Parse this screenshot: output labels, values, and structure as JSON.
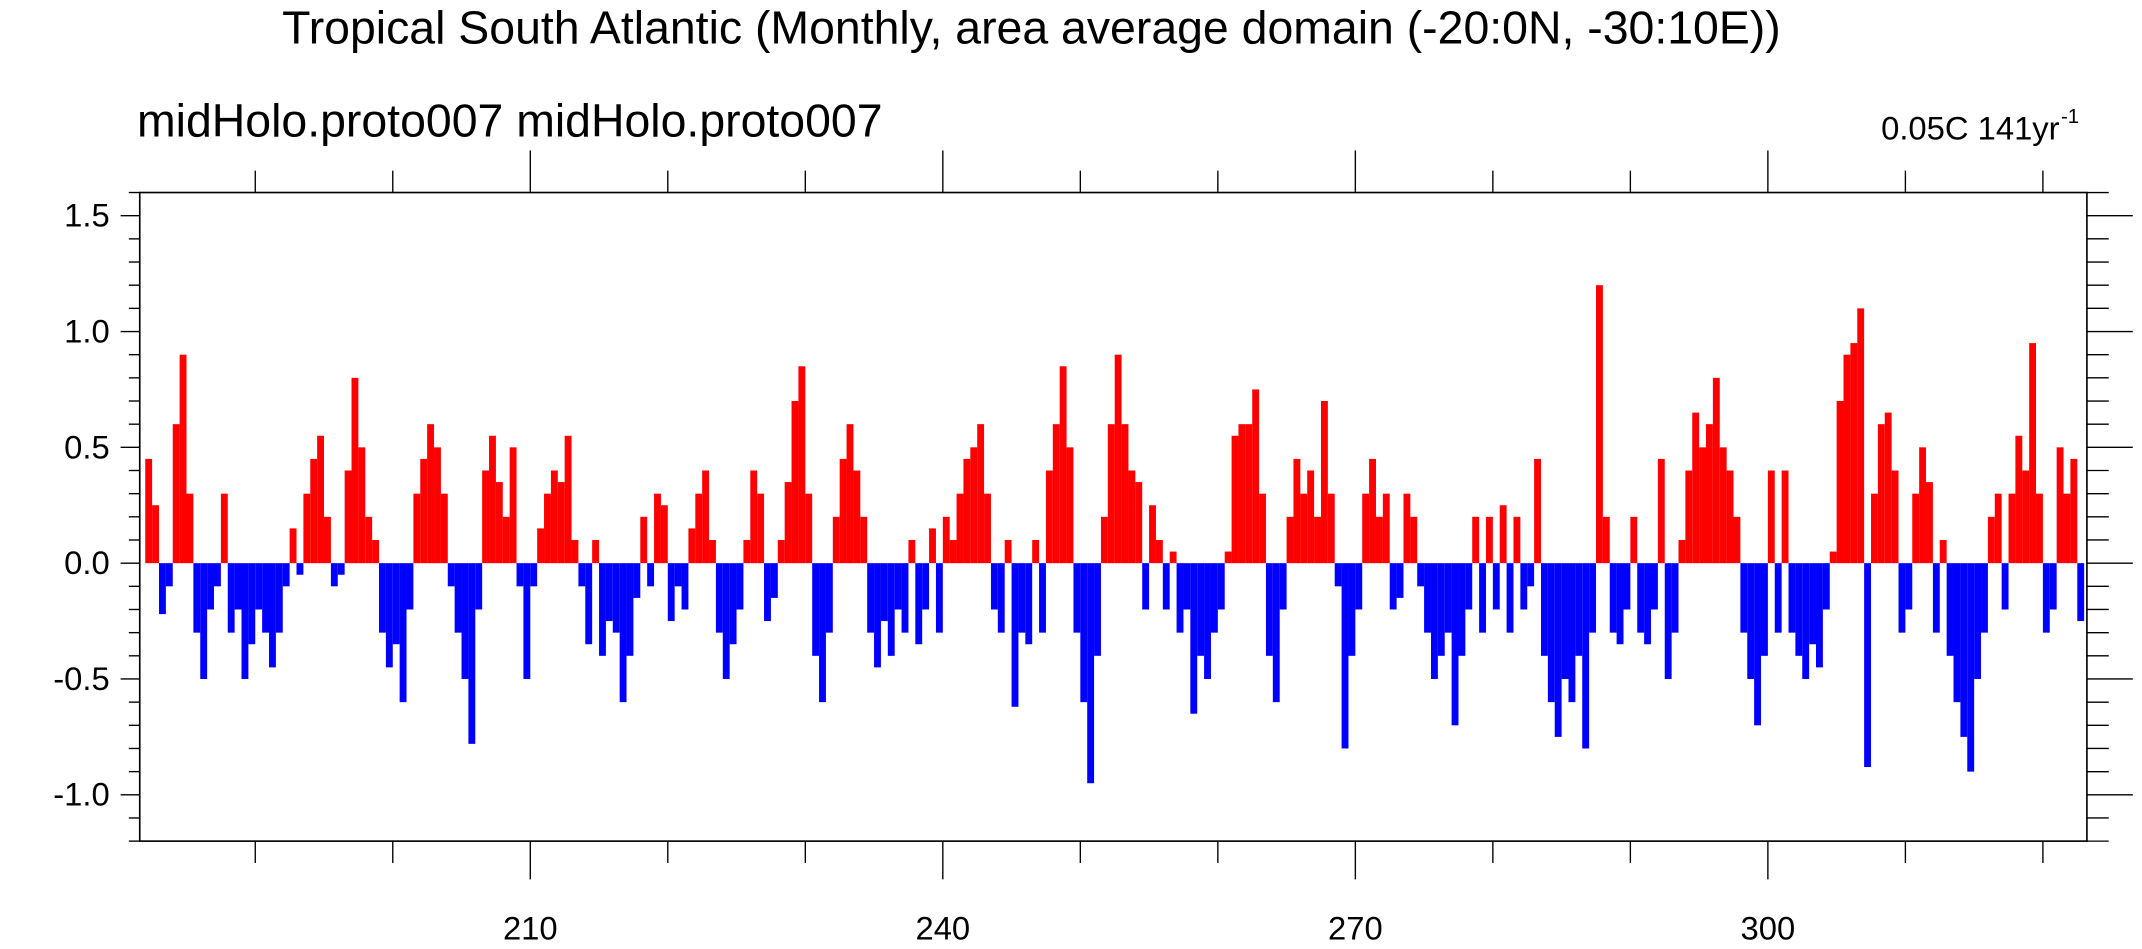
{
  "chart_data": {
    "type": "anomaly_bar",
    "title": "Tropical South Atlantic (Monthly, area average domain (-20:0N, -30:10E))",
    "subtitle_left": "midHolo.proto007  midHolo.proto007",
    "subtitle_right": "0.05C 141yr",
    "subtitle_right_superscript": "-1",
    "above_color": "#ff0000",
    "below_color": "#0000ff",
    "xlim": [
      181.6,
      323.2
    ],
    "xticks": [
      210,
      240,
      270,
      300
    ],
    "xminorticks": [
      190,
      200,
      220,
      230,
      250,
      260,
      280,
      290,
      310,
      320
    ],
    "ylim": [
      -1.2,
      1.6
    ],
    "yticks": [
      {
        "value": 1.5,
        "label": "1.5"
      },
      {
        "value": 1,
        "label": "1.0"
      },
      {
        "value": 0.5,
        "label": "0.5"
      },
      {
        "value": 0,
        "label": "0.0"
      },
      {
        "value": -0.5,
        "label": "-0.5"
      },
      {
        "value": -1,
        "label": "-1.0"
      }
    ],
    "yminorticks": [
      1.6,
      1.4,
      1.3,
      1.2,
      1.1,
      0.9,
      0.8,
      0.7,
      0.6,
      0.4,
      0.3,
      0.2,
      0.1,
      -0.1,
      -0.2,
      -0.3,
      -0.4,
      -0.6,
      -0.7,
      -0.8,
      -0.9,
      -1.1,
      -1.2
    ],
    "x": [
      182,
      182.5,
      183,
      183.5,
      184,
      184.5,
      185,
      185.5,
      186,
      186.5,
      187,
      187.5,
      188,
      188.5,
      189,
      189.5,
      190,
      190.5,
      191,
      191.5,
      192,
      192.5,
      193,
      193.5,
      194,
      194.5,
      195,
      195.5,
      196,
      196.5,
      197,
      197.5,
      198,
      198.5,
      199,
      199.5,
      200,
      200.5,
      201,
      201.5,
      202,
      202.5,
      203,
      203.5,
      204,
      204.5,
      205,
      205.5,
      206,
      206.5,
      207,
      207.5,
      208,
      208.5,
      209,
      209.5,
      210,
      210.5,
      211,
      211.5,
      212,
      212.5,
      213,
      213.5,
      214,
      214.5,
      215,
      215.5,
      216,
      216.5,
      217,
      217.5,
      218,
      218.5,
      219,
      219.5,
      220,
      220.5,
      221,
      221.5,
      222,
      222.5,
      223,
      223.5,
      224,
      224.5,
      225,
      225.5,
      226,
      226.5,
      227,
      227.5,
      228,
      228.5,
      229,
      229.5,
      230,
      230.5,
      231,
      231.5,
      232,
      232.5,
      233,
      233.5,
      234,
      234.5,
      235,
      235.5,
      236,
      236.5,
      237,
      237.5,
      238,
      238.5,
      239,
      239.5,
      240,
      240.5,
      241,
      241.5,
      242,
      242.5,
      243,
      243.5,
      244,
      244.5,
      245,
      245.5,
      246,
      246.5,
      247,
      247.5,
      248,
      248.5,
      249,
      249.5,
      250,
      250.5,
      251,
      251.5,
      252,
      252.5,
      253,
      253.5,
      254,
      254.5,
      255,
      255.5,
      256,
      256.5,
      257,
      257.5,
      258,
      258.5,
      259,
      259.5,
      260,
      260.5,
      261,
      261.5,
      262,
      262.5,
      263,
      263.5,
      264,
      264.5,
      265,
      265.5,
      266,
      266.5,
      267,
      267.5,
      268,
      268.5,
      269,
      269.5,
      270,
      270.5,
      271,
      271.5,
      272,
      272.5,
      273,
      273.5,
      274,
      274.5,
      275,
      275.5,
      276,
      276.5,
      277,
      277.5,
      278,
      278.5,
      279,
      279.5,
      280,
      280.5,
      281,
      281.5,
      282,
      282.5,
      283,
      283.5,
      284,
      284.5,
      285,
      285.5,
      286,
      286.5,
      287,
      287.5,
      288,
      288.5,
      289,
      289.5,
      290,
      290.5,
      291,
      291.5,
      292,
      292.5,
      293,
      293.5,
      294,
      294.5,
      295,
      295.5,
      296,
      296.5,
      297,
      297.5,
      298,
      298.5,
      299,
      299.5,
      300,
      300.5,
      301,
      301.5,
      302,
      302.5,
      303,
      303.5,
      304,
      304.5,
      305,
      305.5,
      306,
      306.5,
      307,
      307.5,
      308,
      308.5,
      309,
      309.5,
      310,
      310.5,
      311,
      311.5,
      312,
      312.5,
      313,
      313.5,
      314,
      314.5,
      315,
      315.5,
      316,
      316.5,
      317,
      317.5,
      318,
      318.5,
      319,
      319.5,
      320,
      320.5,
      321,
      321.5,
      322,
      322.5
    ],
    "values": [
      0.45,
      0.25,
      -0.22,
      -0.1,
      0.6,
      0.9,
      0.3,
      -0.3,
      -0.5,
      -0.2,
      -0.1,
      0.3,
      -0.3,
      -0.2,
      -0.5,
      -0.35,
      -0.2,
      -0.3,
      -0.45,
      -0.3,
      -0.1,
      0.15,
      -0.05,
      0.3,
      0.45,
      0.55,
      0.2,
      -0.1,
      -0.05,
      0.4,
      0.8,
      0.5,
      0.2,
      0.1,
      -0.3,
      -0.45,
      -0.35,
      -0.6,
      -0.2,
      0.3,
      0.45,
      0.6,
      0.5,
      0.3,
      -0.1,
      -0.3,
      -0.5,
      -0.78,
      -0.2,
      0.4,
      0.55,
      0.35,
      0.2,
      0.5,
      -0.1,
      -0.5,
      -0.1,
      0.15,
      0.3,
      0.4,
      0.35,
      0.55,
      0.1,
      -0.1,
      -0.35,
      0.1,
      -0.4,
      -0.25,
      -0.3,
      -0.6,
      -0.4,
      -0.15,
      0.2,
      -0.1,
      0.3,
      0.25,
      -0.25,
      -0.1,
      -0.2,
      0.15,
      0.3,
      0.4,
      0.1,
      -0.3,
      -0.5,
      -0.35,
      -0.2,
      0.1,
      0.4,
      0.3,
      -0.25,
      -0.15,
      0.1,
      0.35,
      0.7,
      0.85,
      0.3,
      -0.4,
      -0.6,
      -0.3,
      0.2,
      0.45,
      0.6,
      0.4,
      0.2,
      -0.3,
      -0.45,
      -0.25,
      -0.4,
      -0.2,
      -0.3,
      0.1,
      -0.35,
      -0.2,
      0.15,
      -0.3,
      0.2,
      0.1,
      0.3,
      0.45,
      0.5,
      0.6,
      0.3,
      -0.2,
      -0.3,
      0.1,
      -0.62,
      -0.3,
      -0.35,
      0.1,
      -0.3,
      0.4,
      0.6,
      0.85,
      0.5,
      -0.3,
      -0.6,
      -0.95,
      -0.4,
      0.2,
      0.6,
      0.9,
      0.6,
      0.4,
      0.35,
      -0.2,
      0.25,
      0.1,
      -0.2,
      0.05,
      -0.3,
      -0.2,
      -0.65,
      -0.4,
      -0.5,
      -0.3,
      -0.2,
      0.05,
      0.55,
      0.6,
      0.6,
      0.75,
      0.3,
      -0.4,
      -0.6,
      -0.2,
      0.2,
      0.45,
      0.3,
      0.4,
      0.2,
      0.7,
      0.3,
      -0.1,
      -0.8,
      -0.4,
      -0.2,
      0.3,
      0.45,
      0.2,
      0.3,
      -0.2,
      -0.15,
      0.3,
      0.2,
      -0.1,
      -0.3,
      -0.5,
      -0.4,
      -0.3,
      -0.7,
      -0.4,
      -0.2,
      0.2,
      -0.3,
      0.2,
      -0.2,
      0.25,
      -0.3,
      0.2,
      -0.2,
      -0.1,
      0.45,
      -0.4,
      -0.6,
      -0.75,
      -0.5,
      -0.6,
      -0.4,
      -0.8,
      -0.3,
      1.2,
      0.2,
      -0.3,
      -0.35,
      -0.2,
      0.2,
      -0.3,
      -0.35,
      -0.2,
      0.45,
      -0.5,
      -0.3,
      0.1,
      0.4,
      0.65,
      0.5,
      0.6,
      0.8,
      0.5,
      0.4,
      0.2,
      -0.3,
      -0.5,
      -0.7,
      -0.4,
      0.4,
      -0.3,
      0.4,
      -0.3,
      -0.4,
      -0.5,
      -0.35,
      -0.45,
      -0.2,
      0.05,
      0.7,
      0.9,
      0.95,
      1.1,
      -0.88,
      0.3,
      0.6,
      0.65,
      0.4,
      -0.3,
      -0.2,
      0.3,
      0.5,
      0.35,
      -0.3,
      0.1,
      -0.4,
      -0.6,
      -0.75,
      -0.9,
      -0.5,
      -0.3,
      0.2,
      0.3,
      -0.2,
      0.3,
      0.55,
      0.4,
      0.95,
      0.3,
      -0.3,
      -0.2,
      0.5,
      0.3,
      0.45,
      -0.25
    ]
  }
}
